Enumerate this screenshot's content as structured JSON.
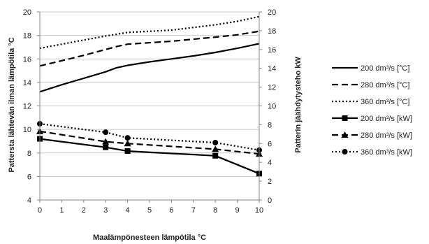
{
  "chart_data": {
    "type": "line",
    "xlabel": "Maalämpönesteen lämpötila °C",
    "ylabel_left": "Pattersta lähtevän ilman lämpötila °C",
    "ylabel_right": "Patterin jäähdytysteho kW",
    "xlim": [
      0,
      10
    ],
    "xticks": [
      0,
      1,
      2,
      3,
      4,
      5,
      6,
      7,
      8,
      9,
      10
    ],
    "ylim_left": [
      4,
      20
    ],
    "yticks_left": [
      4,
      6,
      8,
      10,
      12,
      14,
      16,
      18,
      20
    ],
    "ylim_right": [
      0,
      20
    ],
    "yticks_right": [
      0,
      2,
      4,
      6,
      8,
      10,
      12,
      14,
      16,
      18,
      20
    ],
    "grid": "horizontal",
    "legend_position": "right",
    "series": [
      {
        "name": "200 dm³/s [°C]",
        "axis": "left",
        "style": "solid",
        "marker": "none",
        "points": [
          [
            0,
            13.2
          ],
          [
            1,
            13.8
          ],
          [
            2,
            14.35
          ],
          [
            3,
            14.9
          ],
          [
            3.5,
            15.25
          ],
          [
            4,
            15.45
          ],
          [
            5,
            15.75
          ],
          [
            6,
            16.0
          ],
          [
            7,
            16.25
          ],
          [
            8,
            16.55
          ],
          [
            9,
            16.9
          ],
          [
            10,
            17.3
          ]
        ]
      },
      {
        "name": "280 dm³/s [°C]",
        "axis": "left",
        "style": "dashed",
        "marker": "none",
        "points": [
          [
            0,
            15.4
          ],
          [
            1,
            15.85
          ],
          [
            2,
            16.3
          ],
          [
            3,
            16.8
          ],
          [
            3.5,
            17.05
          ],
          [
            4,
            17.25
          ],
          [
            6,
            17.5
          ],
          [
            8,
            17.85
          ],
          [
            9,
            18.05
          ],
          [
            10,
            18.35
          ]
        ]
      },
      {
        "name": "360 dm³/s [°C]",
        "axis": "left",
        "style": "dotted",
        "marker": "none",
        "points": [
          [
            0,
            16.9
          ],
          [
            1,
            17.25
          ],
          [
            2,
            17.6
          ],
          [
            3,
            17.95
          ],
          [
            4,
            18.25
          ],
          [
            6,
            18.45
          ],
          [
            8,
            18.9
          ],
          [
            9,
            19.2
          ],
          [
            10,
            19.6
          ]
        ]
      },
      {
        "name": "200 dm³/s [kW]",
        "axis": "right",
        "style": "solid",
        "marker": "square",
        "points": [
          [
            0,
            6.5
          ],
          [
            3,
            5.6
          ],
          [
            4,
            5.2
          ],
          [
            8,
            4.7
          ],
          [
            10,
            2.8
          ]
        ]
      },
      {
        "name": "280 dm³/s [kW]",
        "axis": "right",
        "style": "dashed",
        "marker": "triangle",
        "points": [
          [
            0,
            7.3
          ],
          [
            3,
            6.2
          ],
          [
            4,
            6.0
          ],
          [
            8,
            5.4
          ],
          [
            10,
            4.9
          ]
        ]
      },
      {
        "name": "360 dm³/s [kW]",
        "axis": "right",
        "style": "dotted",
        "marker": "circle",
        "points": [
          [
            0,
            8.1
          ],
          [
            3,
            7.2
          ],
          [
            4,
            6.6
          ],
          [
            8,
            6.1
          ],
          [
            10,
            5.3
          ]
        ]
      }
    ]
  }
}
